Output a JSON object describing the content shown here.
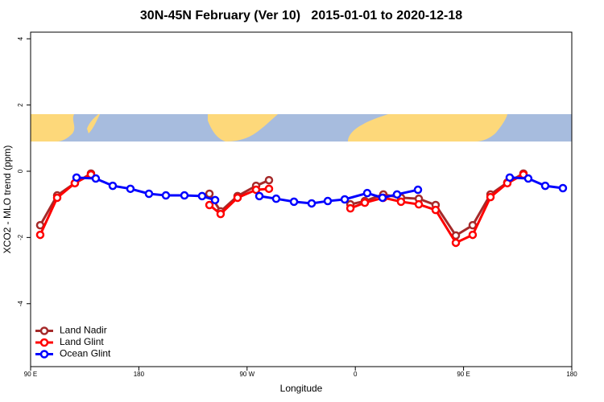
{
  "chart_data": {
    "type": "line",
    "title": "30N-45N February (Ver 10)   2015-01-01 to 2020-12-18",
    "x_label": "Longitude",
    "y_label": "XCO2 - MLO trend (ppm)",
    "xlim": [
      90,
      540
    ],
    "ylim": [
      -5.9,
      4.2
    ],
    "xticks": [
      {
        "value": 90,
        "label": "90 E"
      },
      180,
      {
        "value": 270,
        "label": "90 W"
      },
      {
        "value": 360,
        "label": "0"
      },
      {
        "value": 450,
        "label": "90 E"
      },
      {
        "value": 540,
        "label": "180"
      }
    ],
    "yticks": [
      4,
      2,
      0,
      -2,
      -4
    ],
    "legend": "bottom-left",
    "series": [
      {
        "name": "Land Nadir",
        "color": "#a52a2a",
        "x": [
          98,
          112.1,
          126.8,
          140.2,
          null,
          238.7,
          248,
          262.1,
          277.5,
          288.2,
          null,
          355.9,
          367.9,
          383.3,
          398,
          412.8,
          426.8,
          443.6,
          457.6,
          472.4,
          486.4,
          499.8
        ],
        "values": [
          -1.63,
          -0.73,
          -0.36,
          -0.07,
          null,
          -0.68,
          -1.21,
          -0.75,
          -0.44,
          -0.27,
          null,
          -1.0,
          -0.9,
          -0.7,
          -0.8,
          -0.83,
          -1.02,
          -1.94,
          -1.63,
          -0.7,
          -0.34,
          -0.07
        ]
      },
      {
        "name": "Land Glint",
        "color": "#ff0000",
        "x": [
          98,
          112.1,
          126.8,
          140.2,
          null,
          238.7,
          248,
          262.1,
          277.5,
          288.2,
          null,
          355.9,
          367.9,
          383.3,
          398,
          412.8,
          426.8,
          443.6,
          457.6,
          472.4,
          486.4,
          499.8
        ],
        "values": [
          -1.92,
          -0.8,
          -0.36,
          -0.1,
          null,
          -1.02,
          -1.29,
          -0.8,
          -0.56,
          -0.53,
          null,
          -1.12,
          -0.95,
          -0.8,
          -0.92,
          -1.0,
          -1.17,
          -2.16,
          -1.92,
          -0.78,
          -0.36,
          -0.1
        ]
      },
      {
        "name": "Ocean Glint",
        "color": "#0000ff",
        "x": [
          128.2,
          144.2,
          158.3,
          173,
          188.4,
          202.5,
          217.9,
          232.6,
          243.4,
          null,
          280.2,
          294.2,
          309,
          323.7,
          337.1,
          351.2,
          369.9,
          382.6,
          394.7,
          412.1,
          null,
          488.4,
          503.8,
          517.9,
          532.6
        ],
        "values": [
          -0.19,
          -0.22,
          -0.44,
          -0.53,
          -0.68,
          -0.73,
          -0.73,
          -0.75,
          -0.87,
          null,
          -0.75,
          -0.83,
          -0.92,
          -0.97,
          -0.9,
          -0.85,
          -0.66,
          -0.8,
          -0.7,
          -0.56,
          null,
          -0.19,
          -0.22,
          -0.44,
          -0.51
        ]
      }
    ]
  }
}
